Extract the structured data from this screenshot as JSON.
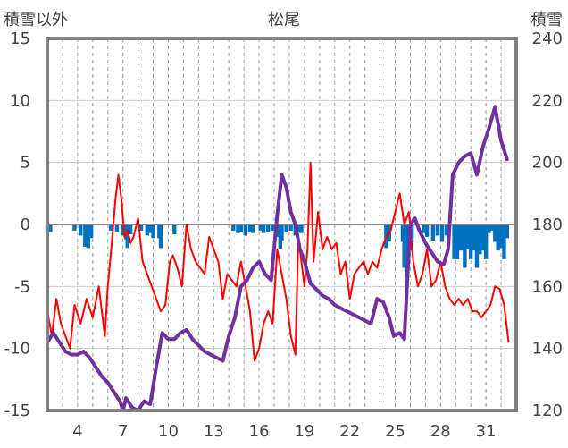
{
  "chart_data": {
    "type": "line",
    "title": "松尾",
    "ylabel_left": "積雪以外",
    "ylabel_right": "積雪",
    "left_axis": {
      "range": [
        -15,
        15
      ],
      "ticks": [
        "15",
        "10",
        "5",
        "0",
        "-5",
        "-10",
        "-15"
      ]
    },
    "right_axis": {
      "range": [
        120,
        240
      ],
      "ticks": [
        "240",
        "220",
        "200",
        "180",
        "160",
        "140",
        "120"
      ]
    },
    "x_axis": {
      "range": [
        2,
        33
      ],
      "tick_labels": [
        "4",
        "7",
        "10",
        "13",
        "16",
        "19",
        "22",
        "25",
        "28",
        "31"
      ]
    },
    "grid": "vertical dashed daily",
    "colors": {
      "temperature": "#ff0000",
      "snow_depth": "#7030a0",
      "precip": "#0070c0",
      "frame": "#808080"
    },
    "series": [
      {
        "axis": "left",
        "kind": "line",
        "points": [
          [
            2,
            -7
          ],
          [
            2.3,
            -9
          ],
          [
            2.6,
            -6
          ],
          [
            2.9,
            -8
          ],
          [
            3.2,
            -9
          ],
          [
            3.5,
            -10
          ],
          [
            3.8,
            -6.5
          ],
          [
            4.2,
            -8
          ],
          [
            4.6,
            -6
          ],
          [
            5.0,
            -7.5
          ],
          [
            5.4,
            -5
          ],
          [
            5.8,
            -9
          ],
          [
            6.0,
            -5
          ],
          [
            6.3,
            -1
          ],
          [
            6.5,
            2
          ],
          [
            6.7,
            4
          ],
          [
            6.9,
            2
          ],
          [
            7.1,
            -1
          ],
          [
            7.3,
            -0.5
          ],
          [
            7.5,
            -1.5
          ],
          [
            7.7,
            -1
          ],
          [
            8.0,
            0.5
          ],
          [
            8.3,
            -3
          ],
          [
            8.6,
            -4
          ],
          [
            8.9,
            -5
          ],
          [
            9.2,
            -6
          ],
          [
            9.5,
            -7
          ],
          [
            9.8,
            -6.5
          ],
          [
            10.1,
            -3
          ],
          [
            10.3,
            -2.5
          ],
          [
            10.6,
            -3.5
          ],
          [
            10.9,
            -5
          ],
          [
            11.2,
            0
          ],
          [
            11.5,
            -2
          ],
          [
            11.8,
            -3
          ],
          [
            12.1,
            -3.5
          ],
          [
            12.4,
            -4
          ],
          [
            12.7,
            -1
          ],
          [
            13.0,
            -2
          ],
          [
            13.3,
            -3
          ],
          [
            13.6,
            -6
          ],
          [
            13.9,
            -4
          ],
          [
            14.2,
            -4.5
          ],
          [
            14.5,
            -5
          ],
          [
            14.8,
            -3
          ],
          [
            15.1,
            -5
          ],
          [
            15.4,
            -7
          ],
          [
            15.7,
            -11
          ],
          [
            16.0,
            -10
          ],
          [
            16.3,
            -8
          ],
          [
            16.6,
            -7
          ],
          [
            16.9,
            -8
          ],
          [
            17.2,
            -2
          ],
          [
            17.5,
            -4
          ],
          [
            17.8,
            -6
          ],
          [
            18.1,
            -9
          ],
          [
            18.4,
            -10.5
          ],
          [
            18.6,
            -1
          ],
          [
            18.8,
            -3
          ],
          [
            19.0,
            -5
          ],
          [
            19.2,
            -2
          ],
          [
            19.4,
            5
          ],
          [
            19.6,
            -3
          ],
          [
            19.9,
            1
          ],
          [
            20.2,
            -2
          ],
          [
            20.5,
            -1
          ],
          [
            20.8,
            -2
          ],
          [
            21.1,
            -1.5
          ],
          [
            21.4,
            -4
          ],
          [
            21.7,
            -3
          ],
          [
            22.0,
            -6
          ],
          [
            22.3,
            -4
          ],
          [
            22.6,
            -3.5
          ],
          [
            22.9,
            -3
          ],
          [
            23.2,
            -4
          ],
          [
            23.5,
            -3
          ],
          [
            23.8,
            -3.5
          ],
          [
            24.1,
            -2
          ],
          [
            24.4,
            -1
          ],
          [
            24.7,
            -0.5
          ],
          [
            25.0,
            1
          ],
          [
            25.3,
            2.5
          ],
          [
            25.6,
            0
          ],
          [
            25.9,
            1
          ],
          [
            26.2,
            -3
          ],
          [
            26.5,
            -5
          ],
          [
            26.8,
            -4
          ],
          [
            27.1,
            -2
          ],
          [
            27.4,
            -5
          ],
          [
            27.7,
            -4.5
          ],
          [
            28.0,
            -3
          ],
          [
            28.3,
            -5
          ],
          [
            28.6,
            -6
          ],
          [
            28.9,
            -6.5
          ],
          [
            29.2,
            -6
          ],
          [
            29.5,
            -6.5
          ],
          [
            29.8,
            -6
          ],
          [
            30.1,
            -7
          ],
          [
            30.4,
            -7
          ],
          [
            30.7,
            -7.5
          ],
          [
            31.0,
            -7
          ],
          [
            31.3,
            -6.5
          ],
          [
            31.6,
            -5
          ],
          [
            31.9,
            -5.2
          ],
          [
            32.2,
            -6.5
          ],
          [
            32.5,
            -9.5
          ]
        ]
      },
      {
        "axis": "right",
        "kind": "line",
        "points": [
          [
            2,
            142
          ],
          [
            2.4,
            145
          ],
          [
            2.8,
            142
          ],
          [
            3.2,
            139
          ],
          [
            3.6,
            138
          ],
          [
            4.0,
            138
          ],
          [
            4.4,
            139
          ],
          [
            4.8,
            137
          ],
          [
            5.2,
            134
          ],
          [
            5.6,
            131
          ],
          [
            6.0,
            129
          ],
          [
            6.4,
            126
          ],
          [
            6.8,
            123
          ],
          [
            7.0,
            120
          ],
          [
            7.2,
            124
          ],
          [
            7.6,
            121
          ],
          [
            8.0,
            120
          ],
          [
            8.4,
            123
          ],
          [
            8.8,
            122
          ],
          [
            9.2,
            134
          ],
          [
            9.6,
            145
          ],
          [
            10.0,
            143
          ],
          [
            10.4,
            143
          ],
          [
            10.8,
            145
          ],
          [
            11.2,
            146
          ],
          [
            11.6,
            143
          ],
          [
            12.0,
            141
          ],
          [
            12.4,
            139
          ],
          [
            12.8,
            138
          ],
          [
            13.2,
            137
          ],
          [
            13.6,
            136
          ],
          [
            14.0,
            144
          ],
          [
            14.4,
            150
          ],
          [
            14.8,
            160
          ],
          [
            15.2,
            162
          ],
          [
            15.6,
            166
          ],
          [
            16.0,
            168
          ],
          [
            16.4,
            164
          ],
          [
            16.8,
            162
          ],
          [
            17.2,
            183
          ],
          [
            17.5,
            196
          ],
          [
            17.8,
            192
          ],
          [
            18.1,
            184
          ],
          [
            18.4,
            180
          ],
          [
            18.7,
            172
          ],
          [
            19.0,
            168
          ],
          [
            19.4,
            161
          ],
          [
            19.8,
            159
          ],
          [
            20.2,
            157
          ],
          [
            20.6,
            156
          ],
          [
            21.0,
            154
          ],
          [
            21.4,
            153
          ],
          [
            21.8,
            152
          ],
          [
            22.2,
            151
          ],
          [
            22.6,
            150
          ],
          [
            23.0,
            149
          ],
          [
            23.4,
            148
          ],
          [
            23.8,
            156
          ],
          [
            24.2,
            155
          ],
          [
            24.6,
            150
          ],
          [
            24.9,
            144
          ],
          [
            25.3,
            145
          ],
          [
            25.6,
            143
          ],
          [
            25.8,
            162
          ],
          [
            26.0,
            180
          ],
          [
            26.3,
            182
          ],
          [
            26.6,
            178
          ],
          [
            27.0,
            174
          ],
          [
            27.4,
            171
          ],
          [
            27.8,
            168
          ],
          [
            28.2,
            167
          ],
          [
            28.5,
            172
          ],
          [
            28.8,
            196
          ],
          [
            29.2,
            200
          ],
          [
            29.6,
            202
          ],
          [
            30.0,
            203
          ],
          [
            30.4,
            196
          ],
          [
            30.8,
            205
          ],
          [
            31.2,
            211
          ],
          [
            31.6,
            218
          ],
          [
            32.0,
            207
          ],
          [
            32.4,
            201
          ]
        ]
      },
      {
        "axis": "left",
        "kind": "bar",
        "bars": [
          [
            2.0,
            -0.7
          ],
          [
            2.2,
            -0.6
          ],
          [
            3.8,
            -0.5
          ],
          [
            4.2,
            -0.9
          ],
          [
            4.5,
            -1.8
          ],
          [
            4.7,
            -1.9
          ],
          [
            4.9,
            -1.1
          ],
          [
            6.2,
            -0.5
          ],
          [
            6.6,
            -0.6
          ],
          [
            7.0,
            -0.9
          ],
          [
            7.2,
            -1.2
          ],
          [
            7.3,
            -1.9
          ],
          [
            7.5,
            -0.8
          ],
          [
            8.2,
            -0.5
          ],
          [
            8.6,
            -0.9
          ],
          [
            8.8,
            -0.7
          ],
          [
            9.0,
            -1.1
          ],
          [
            9.4,
            -1.1
          ],
          [
            9.5,
            -1.9
          ],
          [
            10.4,
            -0.8
          ],
          [
            14.3,
            -0.5
          ],
          [
            14.6,
            -0.7
          ],
          [
            14.8,
            -0.6
          ],
          [
            15.1,
            -0.9
          ],
          [
            15.4,
            -0.6
          ],
          [
            15.6,
            -0.7
          ],
          [
            16.1,
            -0.5
          ],
          [
            16.3,
            -0.7
          ],
          [
            16.6,
            -0.6
          ],
          [
            16.9,
            -0.5
          ],
          [
            17.2,
            -1.0
          ],
          [
            17.4,
            -2.0
          ],
          [
            17.5,
            -1.3
          ],
          [
            17.8,
            -0.6
          ],
          [
            18.1,
            -0.5
          ],
          [
            18.4,
            -0.9
          ],
          [
            18.6,
            -0.6
          ],
          [
            18.8,
            -0.7
          ],
          [
            24.4,
            -1.9
          ],
          [
            24.6,
            -1.3
          ],
          [
            25.5,
            -1.4
          ],
          [
            25.6,
            -3.5
          ],
          [
            25.8,
            -4.2
          ],
          [
            26.0,
            -2.1
          ],
          [
            26.1,
            -1.4
          ],
          [
            26.9,
            -0.7
          ],
          [
            27.1,
            -1.0
          ],
          [
            27.5,
            -1.3
          ],
          [
            27.8,
            -0.9
          ],
          [
            28.1,
            -1.4
          ],
          [
            28.4,
            -0.9
          ],
          [
            28.9,
            -2.8
          ],
          [
            29.1,
            -2.8
          ],
          [
            29.3,
            -2.1
          ],
          [
            29.5,
            -2.1
          ],
          [
            29.6,
            -3.5
          ],
          [
            29.8,
            -2.0
          ],
          [
            30.0,
            -2.8
          ],
          [
            30.2,
            -2.1
          ],
          [
            30.4,
            -3.5
          ],
          [
            30.6,
            -2.4
          ],
          [
            30.8,
            -2.1
          ],
          [
            31.0,
            -2.8
          ],
          [
            31.2,
            -0.7
          ],
          [
            31.4,
            -0.5
          ],
          [
            31.6,
            -1.4
          ],
          [
            31.8,
            -2.1
          ],
          [
            32.0,
            -1.9
          ],
          [
            32.2,
            -2.8
          ],
          [
            32.4,
            -1.1
          ]
        ]
      }
    ]
  }
}
